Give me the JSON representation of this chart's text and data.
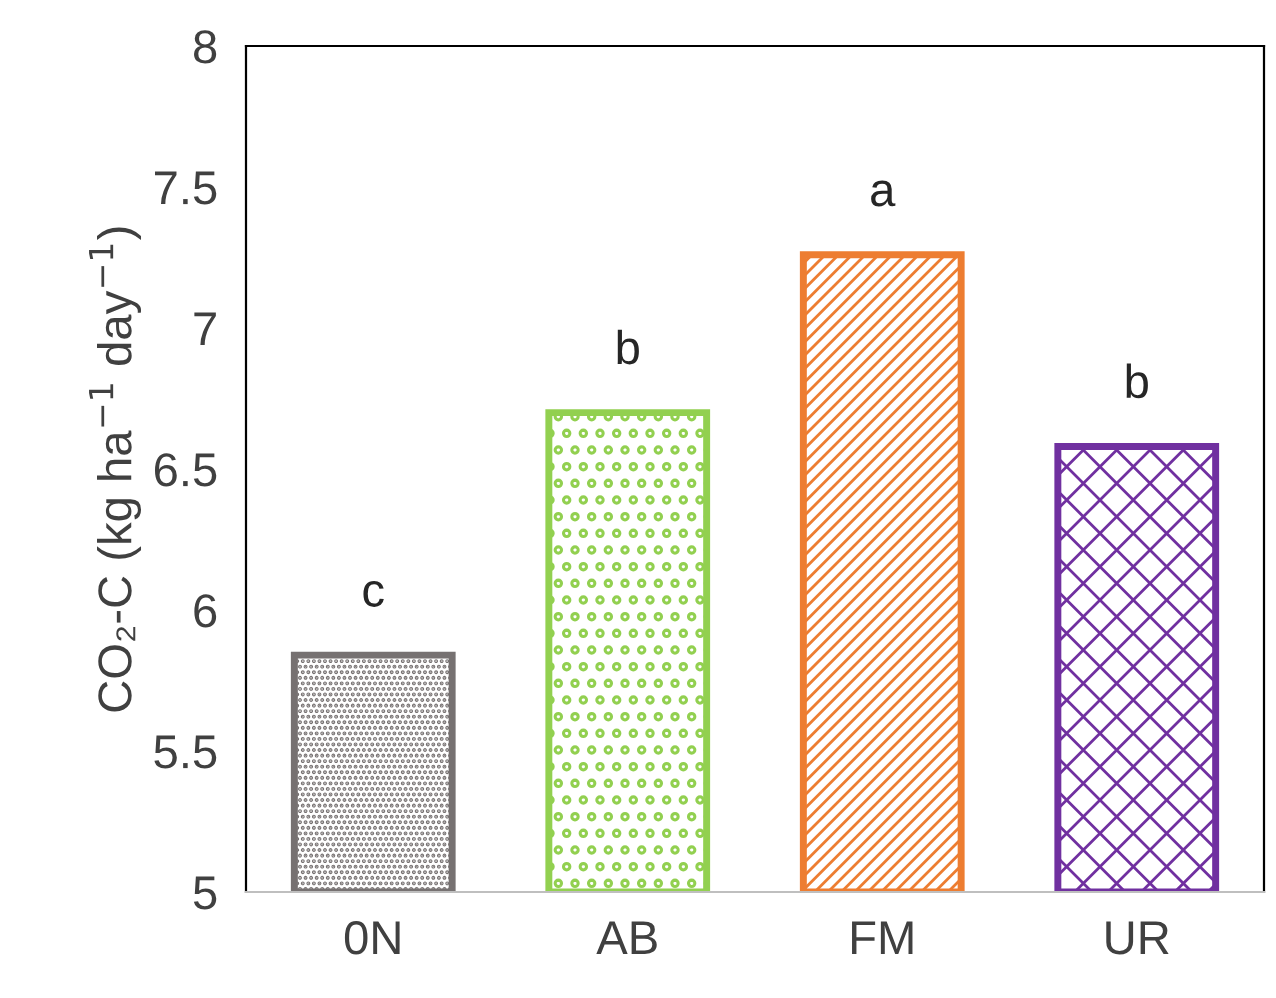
{
  "chart_data": {
    "type": "bar",
    "ylabel": "CO₂-C (kg ha$^{−1}$ day$^{−1}$)",
    "categories": [
      "0N",
      "AB",
      "FM",
      "UR"
    ],
    "values": [
      5.84,
      6.7,
      7.26,
      6.58
    ],
    "colors": [
      "#767171",
      "#92d050",
      "#ed7d31",
      "#7030a0"
    ],
    "ylim": [
      5,
      8
    ],
    "yticks": [
      5,
      5.5,
      6,
      6.5,
      7,
      7.5,
      8
    ],
    "annotations": [
      {
        "text": "c",
        "x": "0N",
        "y": 5.84
      },
      {
        "text": "b",
        "x": "AB",
        "y": 6.7
      },
      {
        "text": "a",
        "x": "FM",
        "y": 7.26
      },
      {
        "text": "b",
        "x": "UR",
        "y": 6.58
      }
    ],
    "grid": false,
    "legend": false
  }
}
